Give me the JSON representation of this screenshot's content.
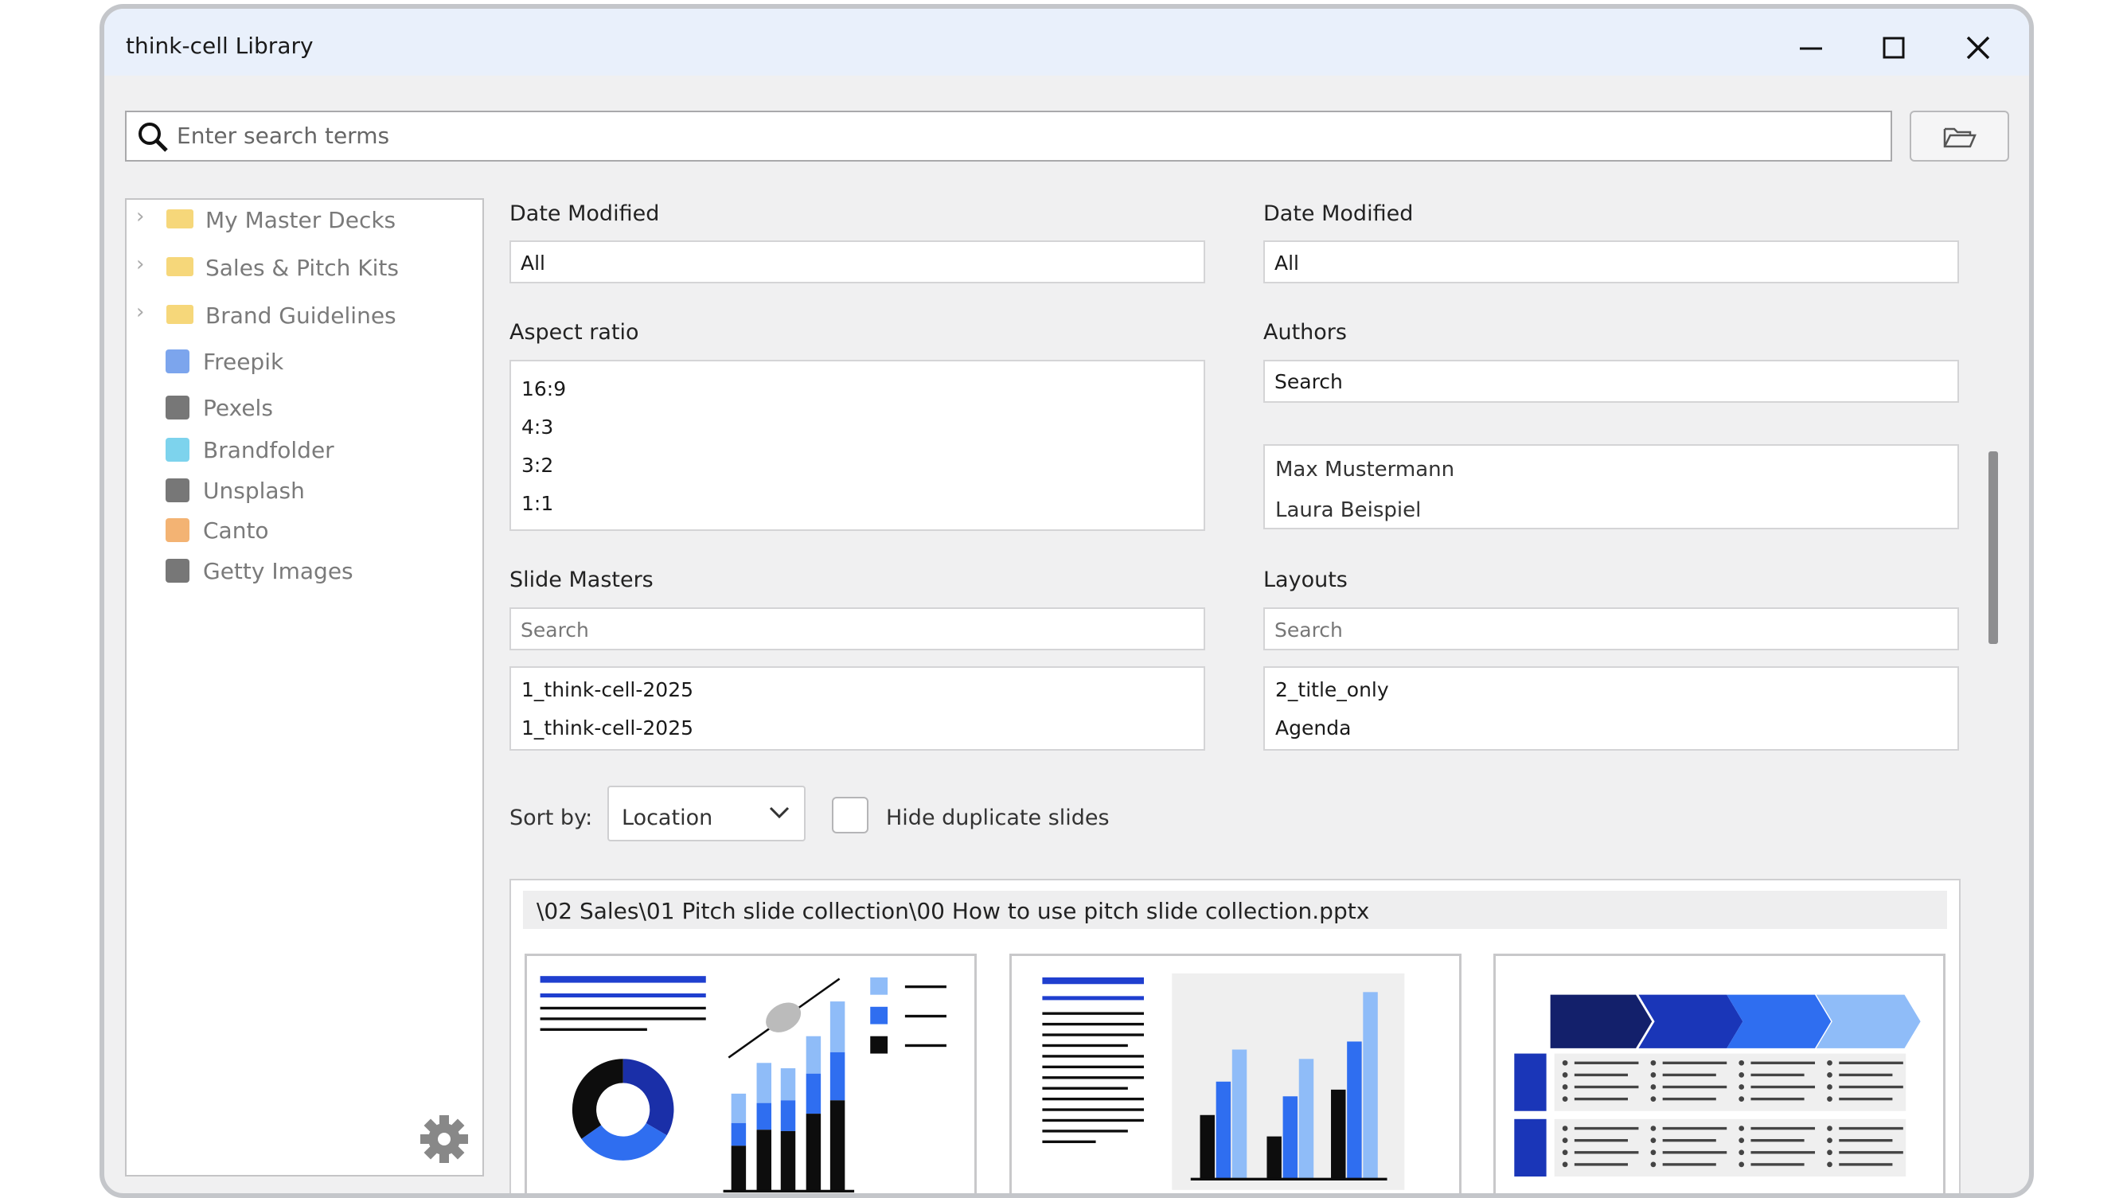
{
  "window": {
    "title": "think-cell Library"
  },
  "search": {
    "placeholder": "Enter search terms"
  },
  "sidebar": {
    "folders": [
      "My Master Decks",
      "Sales & Pitch Kits",
      "Brand Guidelines"
    ],
    "sources": [
      "Freepik",
      "Pexels",
      "Brandfolder",
      "Unsplash",
      "Canto",
      "Getty Images"
    ]
  },
  "filters": {
    "date_modified_left": {
      "label": "Date Modified",
      "value": "All"
    },
    "date_modified_right": {
      "label": "Date Modified",
      "value": "All"
    },
    "aspect_ratio": {
      "label": "Aspect ratio",
      "options": [
        "16:9",
        "4:3",
        "3:2",
        "1:1"
      ]
    },
    "authors": {
      "label": "Authors",
      "search": "Search",
      "options": [
        "Max Mustermann",
        "Laura Beispiel"
      ]
    },
    "slide_masters": {
      "label": "Slide Masters",
      "search": "Search",
      "options": [
        "1_think-cell-2025",
        "1_think-cell-2025"
      ]
    },
    "layouts": {
      "label": "Layouts",
      "search": "Search",
      "options": [
        "2_title_only",
        "Agenda"
      ]
    }
  },
  "sort": {
    "label": "Sort by:",
    "value": "Location",
    "hide_duplicates": "Hide duplicate slides"
  },
  "results": {
    "path": "\\02 Sales\\01 Pitch slide collection\\00 How to use pitch slide collection.pptx"
  }
}
